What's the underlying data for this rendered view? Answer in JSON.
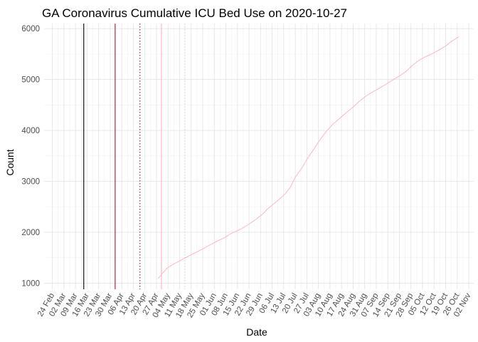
{
  "chart_data": {
    "type": "line",
    "title": "GA Coronavirus Cumulative ICU Bed Use on 2020-10-27",
    "xlabel": "Date",
    "ylabel": "Count",
    "xlim": [
      "2020-02-19",
      "2020-11-05"
    ],
    "ylim": [
      880,
      6100
    ],
    "x_ticks": [
      "24 Feb",
      "02 Mar",
      "09 Mar",
      "16 Mar",
      "23 Mar",
      "30 Mar",
      "06 Apr",
      "13 Apr",
      "20 Apr",
      "27 Apr",
      "04 May",
      "11 May",
      "18 May",
      "25 May",
      "01 Jun",
      "08 Jun",
      "15 Jun",
      "22 Jun",
      "29 Jun",
      "06 Jul",
      "13 Jul",
      "20 Jul",
      "27 Jul",
      "03 Aug",
      "10 Aug",
      "17 Aug",
      "24 Aug",
      "31 Aug",
      "07 Sep",
      "14 Sep",
      "21 Sep",
      "28 Sep",
      "05 Oct",
      "12 Oct",
      "19 Oct",
      "26 Oct",
      "02 Nov"
    ],
    "x_tick_dates": [
      "2020-02-24",
      "2020-03-02",
      "2020-03-09",
      "2020-03-16",
      "2020-03-23",
      "2020-03-30",
      "2020-04-06",
      "2020-04-13",
      "2020-04-20",
      "2020-04-27",
      "2020-05-04",
      "2020-05-11",
      "2020-05-18",
      "2020-05-25",
      "2020-06-01",
      "2020-06-08",
      "2020-06-15",
      "2020-06-22",
      "2020-06-29",
      "2020-07-06",
      "2020-07-13",
      "2020-07-20",
      "2020-07-27",
      "2020-08-03",
      "2020-08-10",
      "2020-08-17",
      "2020-08-24",
      "2020-08-31",
      "2020-09-07",
      "2020-09-14",
      "2020-09-21",
      "2020-09-28",
      "2020-10-05",
      "2020-10-12",
      "2020-10-19",
      "2020-10-26",
      "2020-11-02"
    ],
    "y_ticks": [
      1000,
      2000,
      3000,
      4000,
      5000,
      6000
    ],
    "grid": true,
    "series": [
      {
        "color": "#ffb6c1",
        "x": [
          "2020-04-28",
          "2020-05-01",
          "2020-05-04",
          "2020-05-07",
          "2020-05-10",
          "2020-05-14",
          "2020-05-18",
          "2020-05-22",
          "2020-05-26",
          "2020-05-30",
          "2020-06-03",
          "2020-06-07",
          "2020-06-12",
          "2020-06-17",
          "2020-06-22",
          "2020-06-26",
          "2020-06-30",
          "2020-07-03",
          "2020-07-07",
          "2020-07-10",
          "2020-07-14",
          "2020-07-17",
          "2020-07-20",
          "2020-07-24",
          "2020-07-28",
          "2020-07-31",
          "2020-08-04",
          "2020-08-08",
          "2020-08-12",
          "2020-08-16",
          "2020-08-20",
          "2020-08-24",
          "2020-08-28",
          "2020-09-01",
          "2020-09-05",
          "2020-09-09",
          "2020-09-13",
          "2020-09-17",
          "2020-09-21",
          "2020-09-25",
          "2020-09-29",
          "2020-10-03",
          "2020-10-07",
          "2020-10-11",
          "2020-10-15",
          "2020-10-19",
          "2020-10-23",
          "2020-10-27"
        ],
        "y": [
          1090,
          1210,
          1310,
          1370,
          1420,
          1490,
          1560,
          1620,
          1690,
          1760,
          1830,
          1890,
          1990,
          2060,
          2160,
          2250,
          2350,
          2450,
          2560,
          2640,
          2760,
          2880,
          3080,
          3260,
          3480,
          3620,
          3820,
          3990,
          4130,
          4240,
          4350,
          4460,
          4580,
          4680,
          4760,
          4830,
          4910,
          4990,
          5070,
          5160,
          5280,
          5380,
          5450,
          5510,
          5580,
          5660,
          5760,
          5840
        ]
      }
    ],
    "reference_lines": [
      {
        "x": "2020-03-14",
        "color": "#000000",
        "style": "solid"
      },
      {
        "x": "2020-04-02",
        "color": "#b2182b",
        "style": "solid"
      },
      {
        "x": "2020-04-17",
        "color": "#8b2020",
        "style": "dotted"
      },
      {
        "x": "2020-04-30",
        "color": "#ffb6c1",
        "style": "solid"
      },
      {
        "x": "2020-05-14",
        "color": "#d9d9d9",
        "style": "dotted"
      }
    ]
  }
}
